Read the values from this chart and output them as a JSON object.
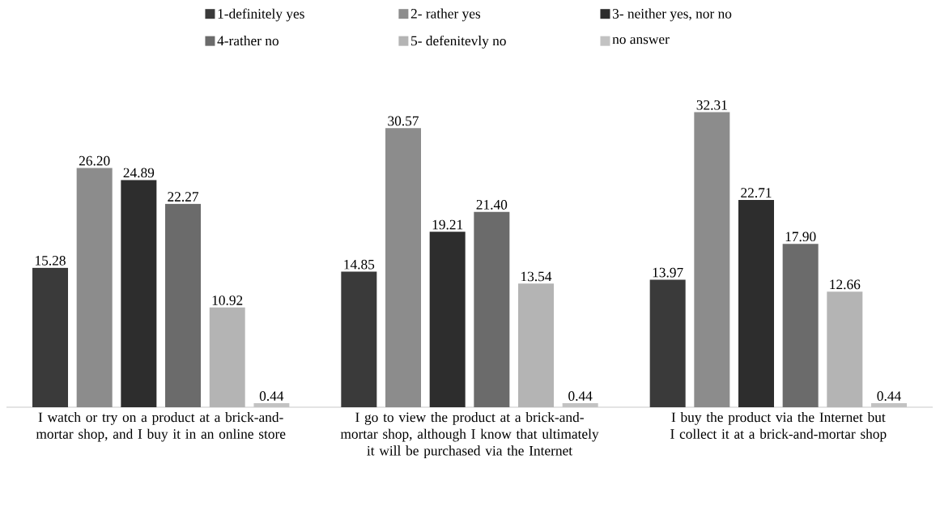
{
  "chart_data": {
    "type": "bar",
    "categories": [
      "I watch or try on a product at a brick-and-mortar shop, and I buy it in an online store",
      "I go to view the product at a brick-and-mortar shop, although I know that ultimately it will be purchased via the Internet",
      "I buy the product via the Internet but I collect it at a brick-and-mortar shop"
    ],
    "series": [
      {
        "name": "1-definitely yes",
        "color": "#3a3a3a",
        "values": [
          15.28,
          14.85,
          13.97
        ],
        "value_labels": [
          "15.28",
          "14.85",
          "13.97"
        ]
      },
      {
        "name": "2- rather yes",
        "color": "#8c8c8c",
        "values": [
          26.2,
          30.57,
          32.31
        ],
        "value_labels": [
          "26.20",
          "30.57",
          "32.31"
        ]
      },
      {
        "name": "3- neither yes, nor no",
        "color": "#2d2d2d",
        "values": [
          24.89,
          19.21,
          22.71
        ],
        "value_labels": [
          "24.89",
          "19.21",
          "22.71"
        ]
      },
      {
        "name": "4-rather no",
        "color": "#6b6b6b",
        "values": [
          22.27,
          21.4,
          17.9
        ],
        "value_labels": [
          "22.27",
          "21.40",
          "17.90"
        ]
      },
      {
        "name": "5- defenitevly no",
        "color": "#b4b4b4",
        "values": [
          10.92,
          13.54,
          12.66
        ],
        "value_labels": [
          "10.92",
          "13.54",
          "12.66"
        ]
      },
      {
        "name": "no answer",
        "color": "#c2c2c2",
        "values": [
          0.44,
          0.44,
          0.44
        ],
        "value_labels": [
          "0.44",
          "0.44",
          "0.44"
        ]
      }
    ],
    "legend": "top"
  }
}
